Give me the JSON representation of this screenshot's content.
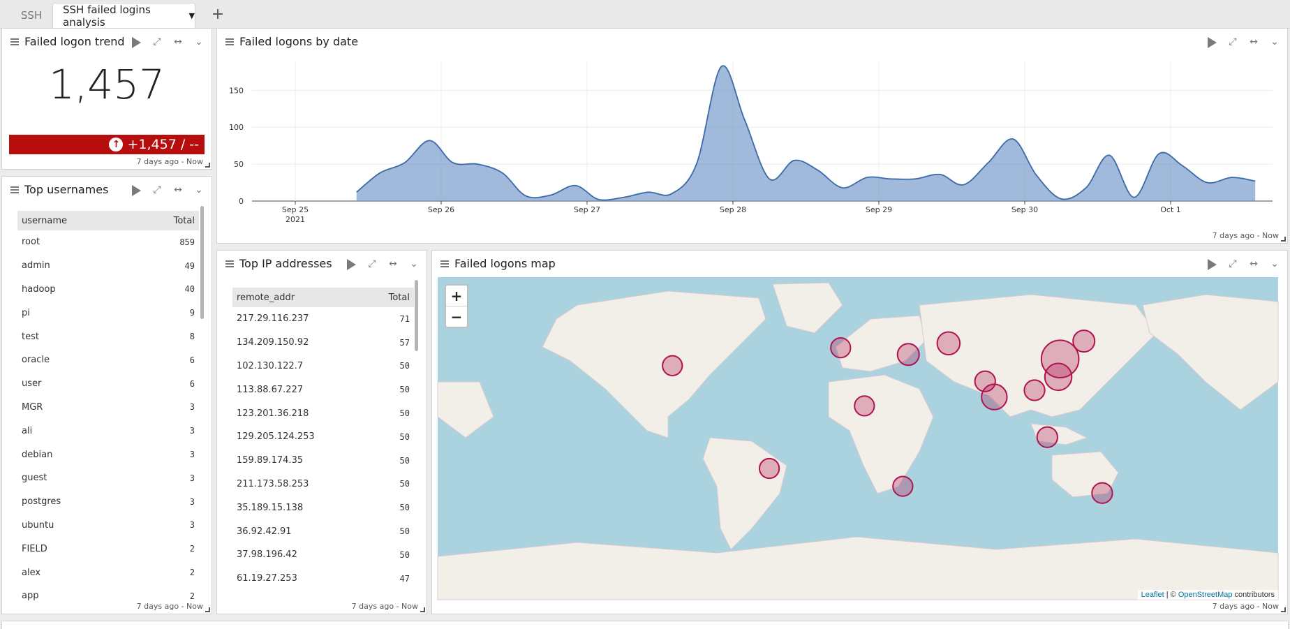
{
  "tabs": [
    {
      "label": "SSH"
    },
    {
      "label": "SSH failed logins analysis"
    }
  ],
  "add_tab_label": "+",
  "time_range": "7 days ago - Now",
  "trend_panel": {
    "title": "Failed logon trend",
    "value": "1,457",
    "change": "+1,457 / --",
    "change_color": "#b80d0d"
  },
  "usernames_panel": {
    "title": "Top usernames",
    "columns": [
      "username",
      "Total"
    ],
    "rows": [
      [
        "root",
        "859"
      ],
      [
        "admin",
        "49"
      ],
      [
        "hadoop",
        "40"
      ],
      [
        "pi",
        "9"
      ],
      [
        "test",
        "8"
      ],
      [
        "oracle",
        "6"
      ],
      [
        "user",
        "6"
      ],
      [
        "MGR",
        "3"
      ],
      [
        "ali",
        "3"
      ],
      [
        "debian",
        "3"
      ],
      [
        "guest",
        "3"
      ],
      [
        "postgres",
        "3"
      ],
      [
        "ubuntu",
        "3"
      ],
      [
        "FIELD",
        "2"
      ],
      [
        "alex",
        "2"
      ],
      [
        "app",
        "2"
      ]
    ]
  },
  "ip_panel": {
    "title": "Top IP addresses",
    "columns": [
      "remote_addr",
      "Total"
    ],
    "rows": [
      [
        "217.29.116.237",
        "71"
      ],
      [
        "134.209.150.92",
        "57"
      ],
      [
        "102.130.122.7",
        "50"
      ],
      [
        "113.88.67.227",
        "50"
      ],
      [
        "123.201.36.218",
        "50"
      ],
      [
        "129.205.124.253",
        "50"
      ],
      [
        "159.89.174.35",
        "50"
      ],
      [
        "211.173.58.253",
        "50"
      ],
      [
        "35.189.15.138",
        "50"
      ],
      [
        "36.92.42.91",
        "50"
      ],
      [
        "37.98.196.42",
        "50"
      ],
      [
        "61.19.27.253",
        "47"
      ]
    ]
  },
  "date_panel": {
    "title": "Failed logons by date"
  },
  "chart_data": {
    "type": "area",
    "title": "Failed logons by date",
    "xlabel": "",
    "ylabel": "",
    "x_ticks": [
      "Sep 25",
      "Sep 26",
      "Sep 27",
      "Sep 28",
      "Sep 29",
      "Sep 30",
      "Oct 1"
    ],
    "x_tick_sublabel": "2021",
    "y_ticks": [
      0,
      50,
      100,
      150
    ],
    "ylim": [
      0,
      190
    ],
    "x_range_days": [
      0,
      6.7
    ],
    "series": [
      {
        "color": "#6f94c6",
        "points": [
          [
            0.42,
            12
          ],
          [
            0.58,
            38
          ],
          [
            0.75,
            52
          ],
          [
            0.92,
            82
          ],
          [
            1.08,
            52
          ],
          [
            1.25,
            50
          ],
          [
            1.42,
            38
          ],
          [
            1.58,
            7
          ],
          [
            1.75,
            8
          ],
          [
            1.92,
            21
          ],
          [
            2.08,
            2
          ],
          [
            2.25,
            5
          ],
          [
            2.42,
            12
          ],
          [
            2.58,
            10
          ],
          [
            2.75,
            50
          ],
          [
            2.92,
            182
          ],
          [
            3.08,
            110
          ],
          [
            3.25,
            30
          ],
          [
            3.42,
            55
          ],
          [
            3.58,
            42
          ],
          [
            3.75,
            18
          ],
          [
            3.92,
            32
          ],
          [
            4.08,
            30
          ],
          [
            4.25,
            30
          ],
          [
            4.42,
            36
          ],
          [
            4.58,
            22
          ],
          [
            4.75,
            52
          ],
          [
            4.92,
            84
          ],
          [
            5.08,
            35
          ],
          [
            5.25,
            3
          ],
          [
            5.42,
            18
          ],
          [
            5.58,
            62
          ],
          [
            5.75,
            5
          ],
          [
            5.92,
            64
          ],
          [
            6.08,
            48
          ],
          [
            6.25,
            25
          ],
          [
            6.42,
            32
          ],
          [
            6.58,
            27
          ]
        ]
      }
    ],
    "grid": true,
    "legend": "none"
  },
  "map_panel": {
    "title": "Failed logons map",
    "zoom_in": "+",
    "zoom_out": "−",
    "attribution_link1": "Leaflet",
    "attribution_sep": " | © ",
    "attribution_link2": "OpenStreetMap",
    "attribution_tail": " contributors",
    "marker_color": "#b0134f",
    "markers": [
      {
        "name": "Mexico",
        "lon": -98,
        "lat": 26,
        "count": 5
      },
      {
        "name": "Brazil",
        "lon": -45,
        "lat": -20,
        "count": 5
      },
      {
        "name": "Morocco",
        "lon": -6,
        "lat": 34,
        "count": 5
      },
      {
        "name": "Nigeria",
        "lon": 7,
        "lat": 8,
        "count": 5
      },
      {
        "name": "South Africa",
        "lon": 28,
        "lat": -28,
        "count": 5
      },
      {
        "name": "Egypt",
        "lon": 31,
        "lat": 31,
        "count": 8
      },
      {
        "name": "Iran",
        "lon": 53,
        "lat": 36,
        "count": 10
      },
      {
        "name": "India West",
        "lon": 73,
        "lat": 19,
        "count": 6
      },
      {
        "name": "India South",
        "lon": 78,
        "lat": 12,
        "count": 16
      },
      {
        "name": "Thailand",
        "lon": 100,
        "lat": 15,
        "count": 6
      },
      {
        "name": "Indonesia",
        "lon": 107,
        "lat": -6,
        "count": 6
      },
      {
        "name": "China",
        "lon": 114,
        "lat": 29,
        "count": 60
      },
      {
        "name": "Hong Kong",
        "lon": 113,
        "lat": 21,
        "count": 20
      },
      {
        "name": "Korea",
        "lon": 127,
        "lat": 37,
        "count": 8
      },
      {
        "name": "Australia",
        "lon": 137,
        "lat": -31,
        "count": 6
      }
    ]
  }
}
